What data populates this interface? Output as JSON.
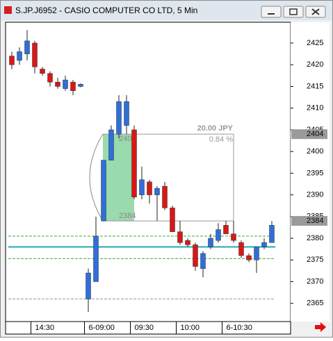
{
  "window_title": "S.JP.J6952 - CASIO COMPUTER CO LTD, 5 Min",
  "chart_data": {
    "type": "candlestick",
    "categories": [
      null,
      null,
      null,
      "14:30",
      null,
      null,
      null,
      null,
      null,
      null,
      "6-09:00",
      null,
      null,
      null,
      null,
      null,
      "09:30",
      null,
      null,
      null,
      null,
      null,
      "10:00",
      null,
      null,
      null,
      null,
      null,
      "6-10:30",
      null,
      null,
      null,
      null,
      null,
      null
    ],
    "open": [
      2422,
      2421,
      2422.5,
      2425,
      2419,
      2418,
      2416,
      2414.5,
      2416,
      2415,
      2366,
      2370,
      2384,
      2398,
      2404,
      2406,
      2405,
      2390,
      2393,
      2390,
      2392,
      2387,
      2381.5,
      2379.5,
      2378.5,
      2373,
      2378,
      2379.5,
      2383,
      2381,
      2379,
      2376,
      2375,
      2378,
      2379
    ],
    "high": [
      2423,
      2424,
      2428,
      2425.5,
      2419.5,
      2418.5,
      2417,
      2417.5,
      2416.5,
      2415.7,
      2373,
      2385,
      2398,
      2406,
      2413,
      2413,
      2406,
      2396.5,
      2393.5,
      2392,
      2393,
      2387.5,
      2384,
      2380,
      2379,
      2377,
      2381,
      2383.5,
      2384,
      2384,
      2379.5,
      2376.5,
      2378,
      2380,
      2384
    ],
    "low": [
      2419,
      2420,
      2421,
      2418,
      2417.5,
      2415,
      2414.5,
      2414,
      2413,
      2414.8,
      2363,
      2370,
      2384,
      2398,
      2403,
      2404,
      2389,
      2389,
      2388,
      2384,
      2386.5,
      2381.5,
      2378.5,
      2378,
      2372.5,
      2371,
      2377.5,
      2379,
      2381,
      2379,
      2375.5,
      2374.5,
      2372,
      2377.5,
      2379
    ],
    "close": [
      2420,
      2423,
      2425.5,
      2419.5,
      2418,
      2416,
      2415,
      2416.5,
      2414,
      2415.5,
      2372,
      2380.5,
      2398,
      2405,
      2411.5,
      2411.5,
      2389.5,
      2393.5,
      2390,
      2391.5,
      2387,
      2381.5,
      2379,
      2378.5,
      2373.5,
      2376.5,
      2380,
      2382,
      2381,
      2379.5,
      2376,
      2375,
      2378,
      2379,
      2383
    ],
    "up_color": "#2f6fd8",
    "down_color": "#d81818",
    "ylim": [
      2360.8,
      2429.8
    ],
    "yticks": [
      2365,
      2370,
      2375,
      2380,
      2385,
      2390,
      2395,
      2400,
      2405,
      2410,
      2415,
      2420,
      2425
    ],
    "levels": [
      {
        "value": 2380.5,
        "color": "#30b030",
        "style": "dashed"
      },
      {
        "value": 2378,
        "color": "#20a8b8",
        "style": "solid"
      },
      {
        "value": 2375.3,
        "color": "#30b030",
        "style": "dashed"
      },
      {
        "value": 2366,
        "color": "#999999",
        "style": "dashed"
      }
    ],
    "measure": {
      "from": 2384,
      "to": 2404,
      "change": "20.00 JPY",
      "percent": "0.84 %"
    },
    "price_markers": [
      2404,
      2384
    ]
  }
}
